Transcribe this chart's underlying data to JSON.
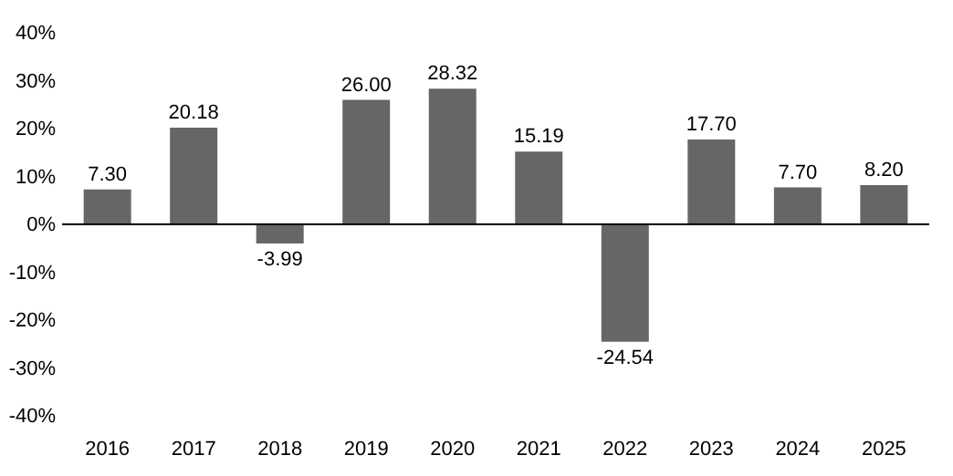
{
  "chart_data": {
    "type": "bar",
    "categories": [
      "2016",
      "2017",
      "2018",
      "2019",
      "2020",
      "2021",
      "2022",
      "2023",
      "2024",
      "2025"
    ],
    "values": [
      7.3,
      20.18,
      -3.99,
      26.0,
      28.32,
      15.19,
      -24.54,
      17.7,
      7.7,
      8.2
    ],
    "value_labels": [
      "7.30",
      "20.18",
      "-3.99",
      "26.00",
      "28.32",
      "15.19",
      "-24.54",
      "17.70",
      "7.70",
      "8.20"
    ],
    "color": "#666666",
    "ylim": [
      -40,
      40
    ],
    "yticks": [
      {
        "value": -40,
        "label": "-40%"
      },
      {
        "value": -30,
        "label": "-30%"
      },
      {
        "value": -20,
        "label": "-20%"
      },
      {
        "value": -10,
        "label": "-10%"
      },
      {
        "value": 0,
        "label": "0%"
      },
      {
        "value": 10,
        "label": "10%"
      },
      {
        "value": 20,
        "label": "20%"
      },
      {
        "value": 30,
        "label": "30%"
      },
      {
        "value": 40,
        "label": "40%"
      }
    ],
    "ref_lines": [
      {
        "axis": "y",
        "value": 0,
        "color": "#000000"
      }
    ],
    "grid": false
  }
}
